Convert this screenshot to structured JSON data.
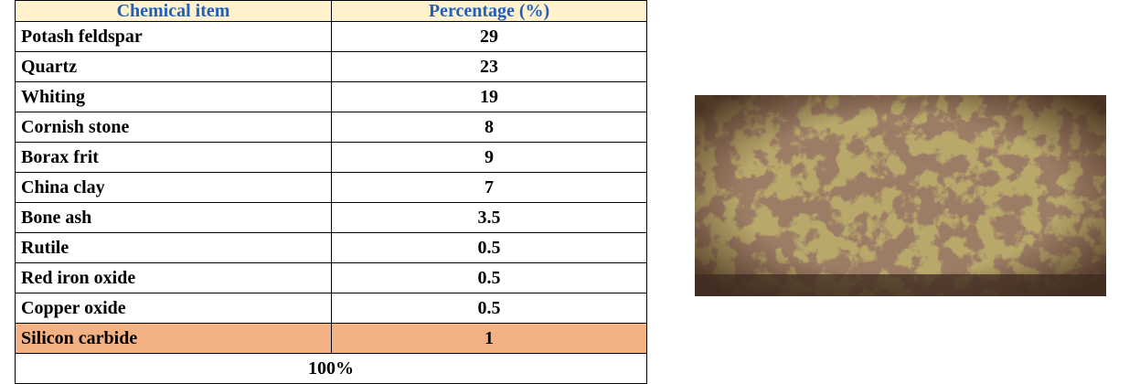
{
  "table": {
    "header": [
      "Chemical item",
      "Percentage (%)"
    ],
    "rows": [
      [
        "Potash feldspar",
        29
      ],
      [
        "Quartz",
        23
      ],
      [
        "Whiting",
        19
      ],
      [
        "Cornish stone",
        8
      ],
      [
        "Borax frit",
        9
      ],
      [
        "China clay",
        7
      ],
      [
        "Bone ash",
        3.5
      ],
      [
        "Rutile",
        0.5
      ],
      [
        "Red iron oxide",
        0.5
      ],
      [
        "Copper oxide",
        0.5
      ],
      [
        "Silicon carbide",
        1
      ]
    ],
    "total": "100%"
  }
}
